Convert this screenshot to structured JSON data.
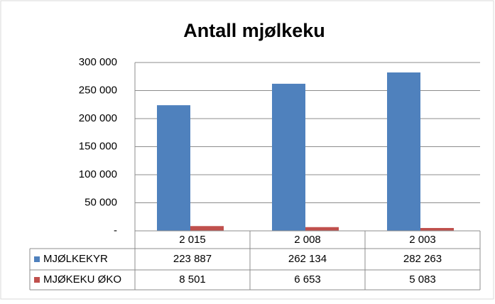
{
  "chart_data": {
    "type": "bar",
    "title": "Antall mjølkeku",
    "categories": [
      "2 015",
      "2 008",
      "2 003"
    ],
    "series": [
      {
        "name": "MJØLKEKYR",
        "color": "#4f81bd",
        "values": [
          223887,
          262134,
          282263
        ],
        "value_labels": [
          "223 887",
          "262 134",
          "282 263"
        ]
      },
      {
        "name": "MJØKEKU ØKO",
        "color": "#c0504d",
        "values": [
          8501,
          6653,
          5083
        ],
        "value_labels": [
          "8 501",
          "6 653",
          "5 083"
        ]
      }
    ],
    "ylim": [
      0,
      300000
    ],
    "yticks": [
      {
        "value": 0,
        "label": "-"
      },
      {
        "value": 50000,
        "label": "50 000"
      },
      {
        "value": 100000,
        "label": "100 000"
      },
      {
        "value": 150000,
        "label": "150 000"
      },
      {
        "value": 200000,
        "label": "200 000"
      },
      {
        "value": 250000,
        "label": "250 000"
      },
      {
        "value": 300000,
        "label": "300 000"
      }
    ],
    "grid": true
  }
}
